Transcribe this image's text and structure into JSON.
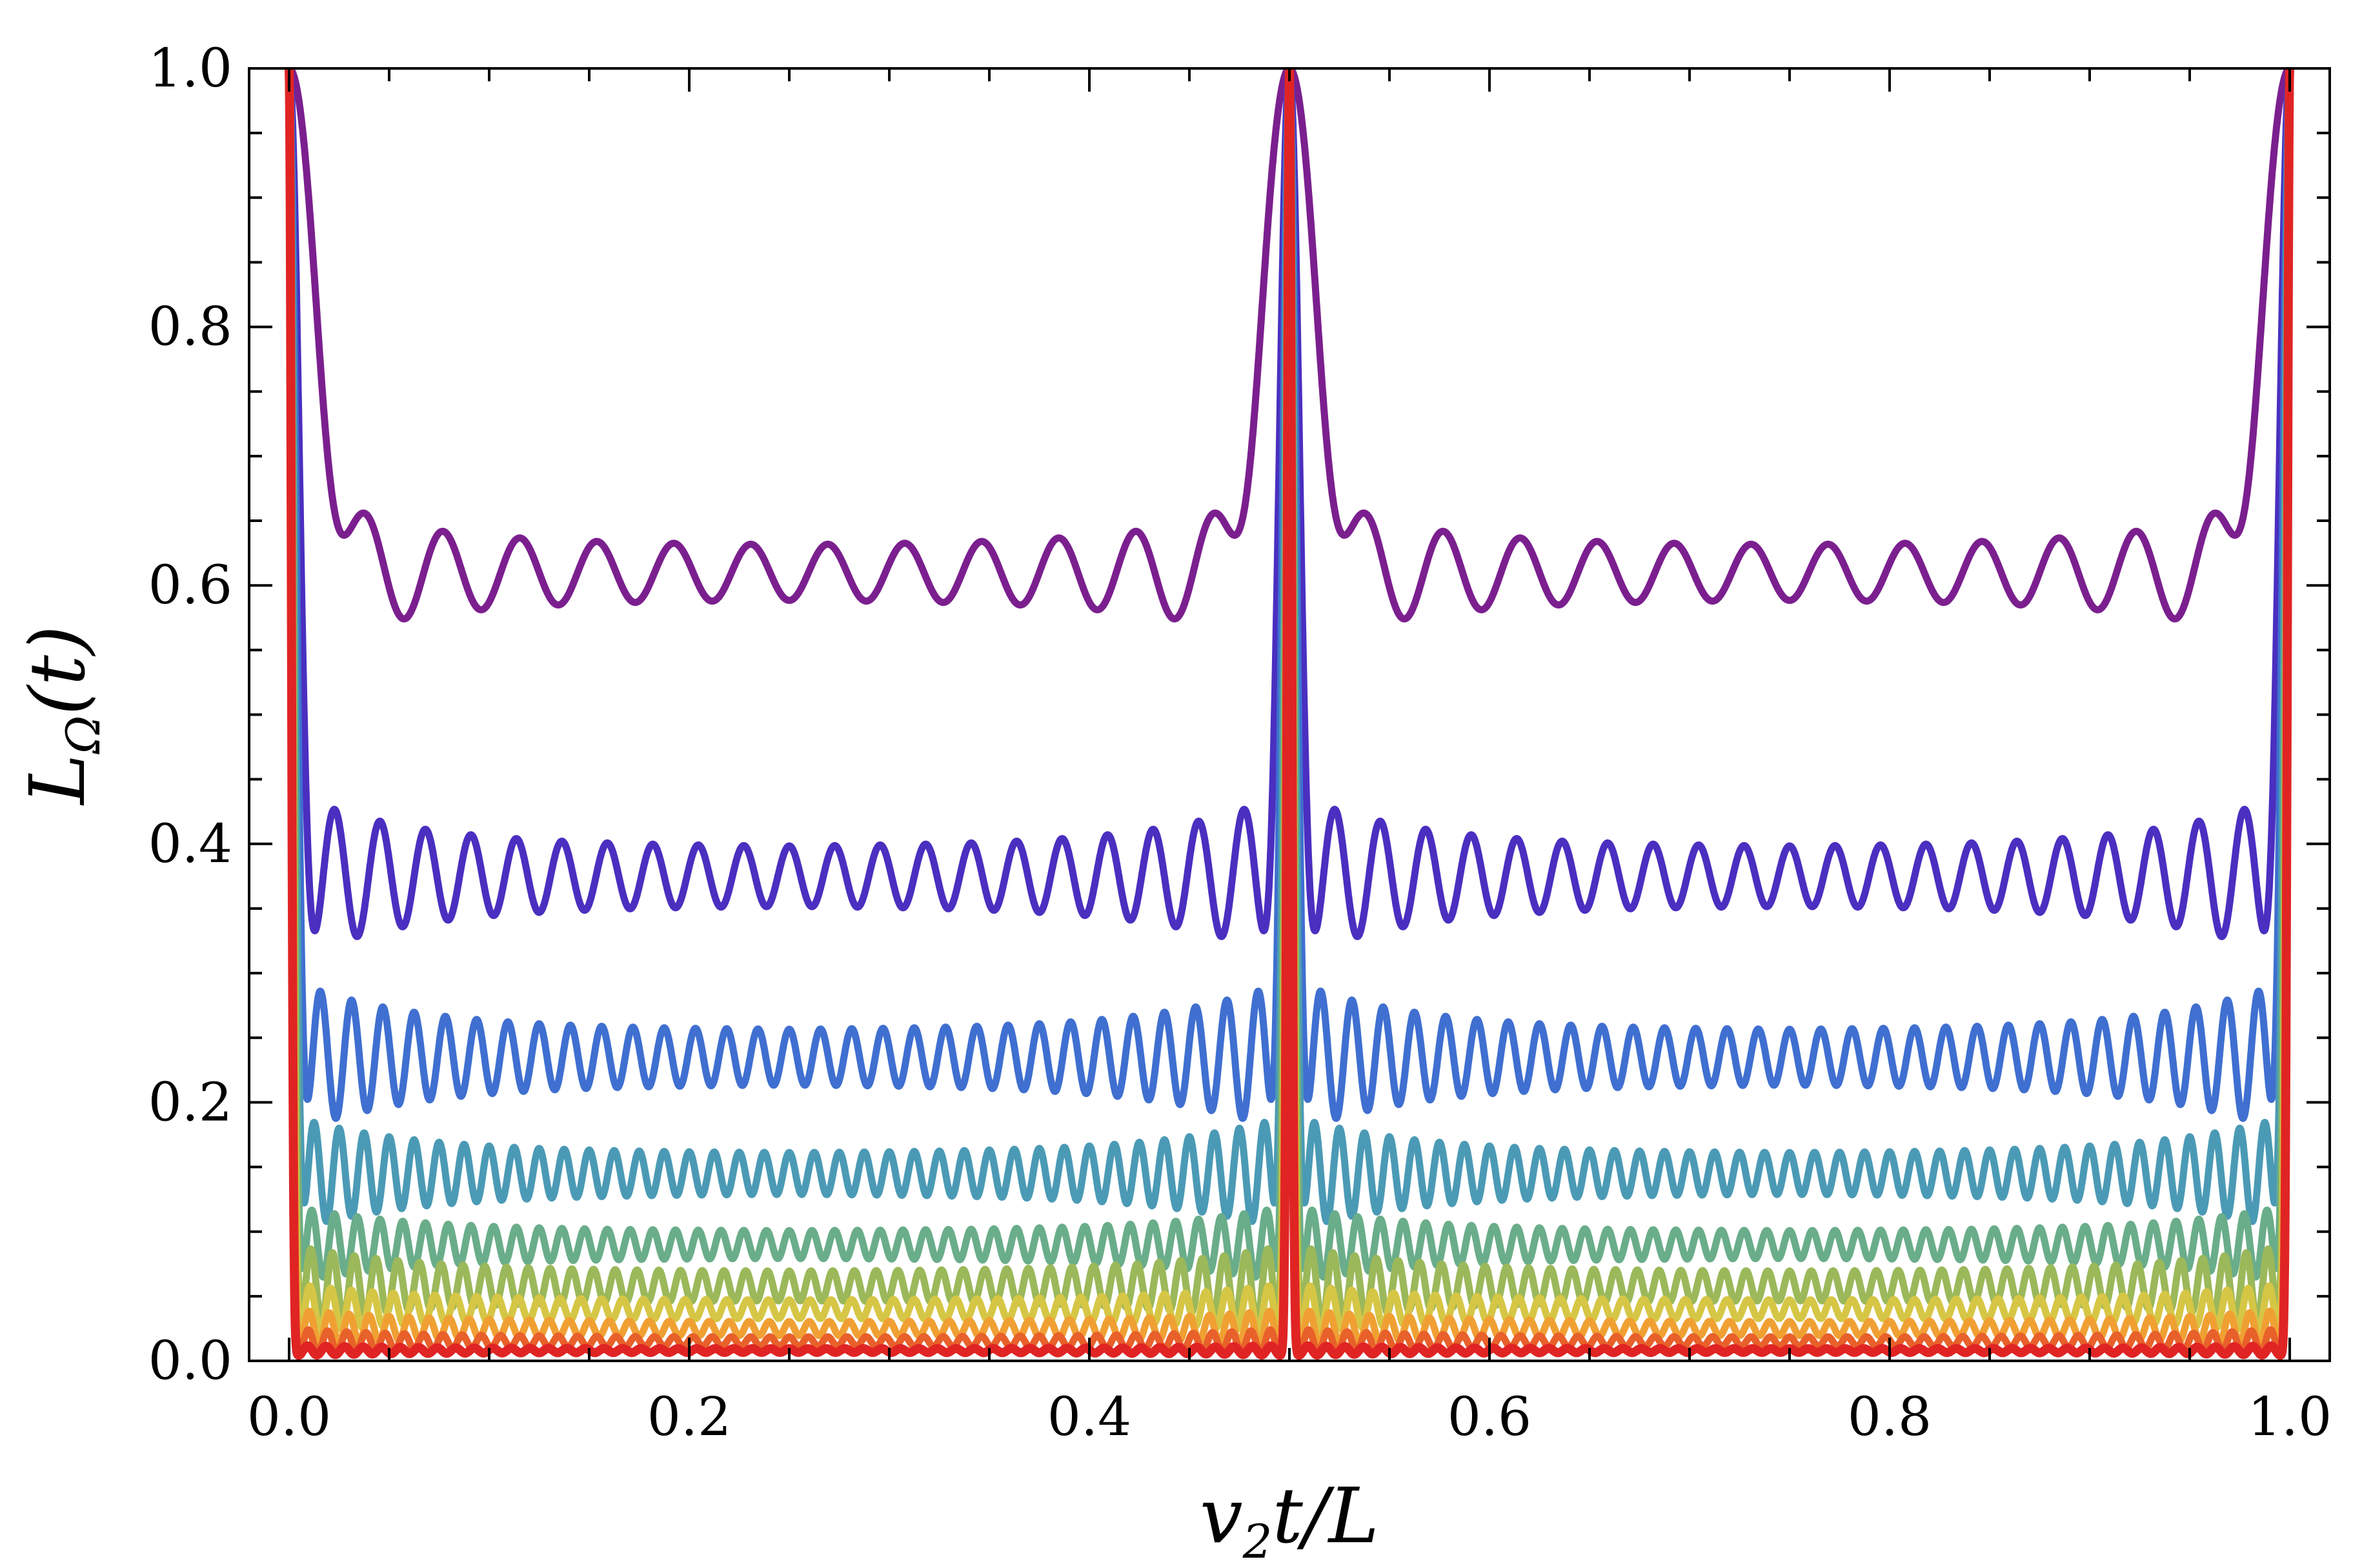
{
  "chart_data": {
    "type": "line",
    "title": "",
    "xlabel": {
      "main": "v",
      "sub": "2",
      "rest": "t/L"
    },
    "ylabel": {
      "main": "L",
      "sub": "Ω",
      "rest": "(t)"
    },
    "xlim": [
      -0.02,
      1.02
    ],
    "ylim": [
      0.0,
      1.0
    ],
    "xticks": [
      "0.0",
      "0.2",
      "0.4",
      "0.6",
      "0.8",
      "1.0"
    ],
    "yticks": [
      "0.0",
      "0.2",
      "0.4",
      "0.6",
      "0.8",
      "1.0"
    ],
    "grid": false,
    "legend": "none",
    "x_period": 0.5,
    "description_series": "Each series is periodic in v2t/L with period 0.5; equals 1.0 at 0, 0.5, 1.0 and oscillates around a plateau otherwise.",
    "series": [
      {
        "color": "#7b1f8f",
        "plateau": 0.61,
        "first_dip": 0.55,
        "first_peak": 0.65,
        "osc_cycles_per_half": 13
      },
      {
        "color": "#4a2fc0",
        "plateau": 0.375,
        "first_dip": 0.31,
        "first_peak": 0.43,
        "osc_cycles_per_half": 22
      },
      {
        "color": "#3f6fd0",
        "plateau": 0.235,
        "first_dip": 0.175,
        "first_peak": 0.28,
        "osc_cycles_per_half": 32
      },
      {
        "color": "#4b9ab5",
        "plateau": 0.145,
        "first_dip": 0.125,
        "first_peak": 0.19,
        "osc_cycles_per_half": 40
      },
      {
        "color": "#6aad8a",
        "plateau": 0.09,
        "first_dip": 0.08,
        "first_peak": 0.12,
        "osc_cycles_per_half": 44
      },
      {
        "color": "#9bb85a",
        "plateau": 0.058,
        "first_dip": 0.05,
        "first_peak": 0.09,
        "osc_cycles_per_half": 46
      },
      {
        "color": "#d6c645",
        "plateau": 0.04,
        "first_dip": 0.035,
        "first_peak": 0.06,
        "osc_cycles_per_half": 48
      },
      {
        "color": "#f0a033",
        "plateau": 0.025,
        "first_dip": 0.022,
        "first_peak": 0.04,
        "osc_cycles_per_half": 50
      },
      {
        "color": "#e8602a",
        "plateau": 0.015,
        "first_dip": 0.013,
        "first_peak": 0.025,
        "osc_cycles_per_half": 52
      },
      {
        "color": "#e02424",
        "plateau": 0.008,
        "first_dip": 0.007,
        "first_peak": 0.012,
        "osc_cycles_per_half": 54
      }
    ]
  }
}
